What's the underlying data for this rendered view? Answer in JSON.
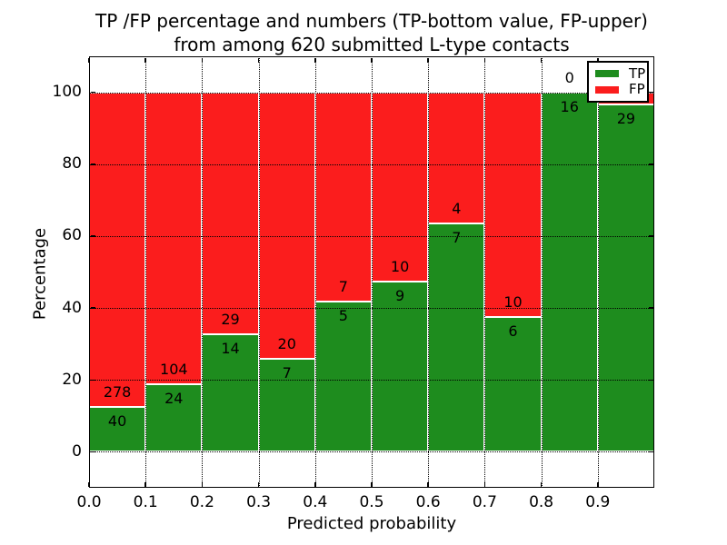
{
  "figure": {
    "title_line1": "TP /FP percentage and numbers (TP-bottom value, FP-upper)",
    "title_line2": "from among 620 submitted L-type contacts",
    "xlabel": "Predicted probability",
    "ylabel": "Percentage"
  },
  "legend": {
    "position": "upper right",
    "items": [
      {
        "label": "TP",
        "color": "#1e8c1e"
      },
      {
        "label": "FP",
        "color": "#fb1d1d"
      }
    ]
  },
  "colors": {
    "tp_green": "#1e8c1e",
    "fp_red": "#fb1d1d",
    "bar_edge": "#ffffff",
    "grid": "#000000",
    "background": "#ffffff",
    "text": "#000000"
  },
  "chart_data": {
    "type": "bar",
    "stacked": true,
    "normalized": "percent of bin total",
    "title": "TP /FP percentage and numbers (TP-bottom value, FP-upper) from among 620 submitted L-type contacts",
    "xlabel": "Predicted probability",
    "ylabel": "Percentage",
    "xlim": [
      0.0,
      1.0
    ],
    "ylim": [
      -10,
      110
    ],
    "grid": "dotted, both axes, ticks inward on all four sides",
    "legend_position": "upper right",
    "bin_width": 0.1,
    "bin_starts": [
      0.0,
      0.1,
      0.2,
      0.3,
      0.4,
      0.5,
      0.6,
      0.7,
      0.8,
      0.9
    ],
    "xtick_labels": [
      "0.0",
      "0.1",
      "0.2",
      "0.3",
      "0.4",
      "0.5",
      "0.6",
      "0.7",
      "0.8",
      "0.9"
    ],
    "ytick_values": [
      0,
      20,
      40,
      60,
      80,
      100
    ],
    "series": [
      {
        "name": "TP",
        "color": "#1e8c1e",
        "counts": [
          40,
          24,
          14,
          7,
          5,
          9,
          7,
          6,
          16,
          29
        ]
      },
      {
        "name": "FP",
        "color": "#fb1d1d",
        "counts": [
          278,
          104,
          29,
          20,
          7,
          10,
          4,
          10,
          0,
          null
        ]
      }
    ],
    "tp_percent": [
      12.6,
      18.8,
      32.6,
      25.9,
      41.7,
      47.4,
      63.6,
      37.5,
      100.0,
      96.7
    ],
    "total_contacts": 620,
    "note": "FP count label for the 0.9-1.0 bin is hidden behind the legend; a small red sliver is visible at the top of that bar"
  }
}
